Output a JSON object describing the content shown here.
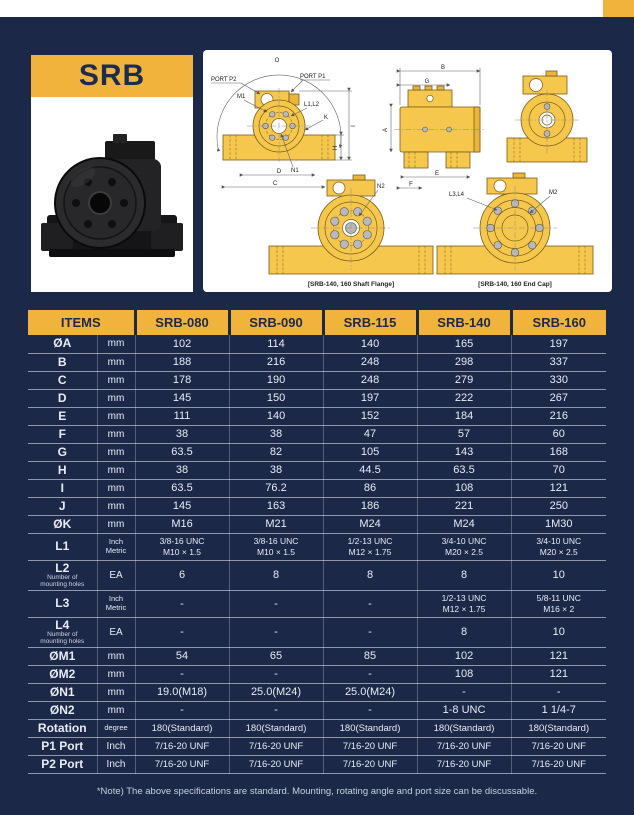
{
  "colors": {
    "background_navy": "#1b2847",
    "accent_yellow": "#f0b43c",
    "drawing_gold": "#f5c84d",
    "header_text_navy": "#1c2a4c",
    "unit_text_yellow": "#ecb648"
  },
  "product_card": {
    "title": "SRB"
  },
  "drawing": {
    "front_view": {
      "labels": {
        "o": "O",
        "port_p2": "PORT P2",
        "port_p1": "PORT P1",
        "m1": "M1",
        "l1l2": "L1,L2",
        "k": "K",
        "n1": "N1",
        "h": "H",
        "i": "I",
        "d": "D",
        "c": "C"
      }
    },
    "side_view": {
      "labels": {
        "b": "B",
        "g": "G",
        "a": "A",
        "e": "E",
        "f": "F"
      }
    },
    "shaft_flange_view": {
      "label_n2": "N2",
      "caption": "[SRB-140, 160 Shaft Flange]"
    },
    "end_cap_view": {
      "label_l3l4": "L3,L4",
      "label_m2": "M2",
      "caption": "[SRB-140, 160 End Cap]"
    }
  },
  "table": {
    "items_header": "ITEMS",
    "models": [
      "SRB-080",
      "SRB-090",
      "SRB-115",
      "SRB-140",
      "SRB-160"
    ],
    "rows": [
      {
        "item": "ØA",
        "unit": "mm",
        "values": [
          "102",
          "114",
          "140",
          "165",
          "197"
        ]
      },
      {
        "item": "B",
        "unit": "mm",
        "values": [
          "188",
          "216",
          "248",
          "298",
          "337"
        ]
      },
      {
        "item": "C",
        "unit": "mm",
        "values": [
          "178",
          "190",
          "248",
          "279",
          "330"
        ]
      },
      {
        "item": "D",
        "unit": "mm",
        "values": [
          "145",
          "150",
          "197",
          "222",
          "267"
        ]
      },
      {
        "item": "E",
        "unit": "mm",
        "values": [
          "111",
          "140",
          "152",
          "184",
          "216"
        ]
      },
      {
        "item": "F",
        "unit": "mm",
        "values": [
          "38",
          "38",
          "47",
          "57",
          "60"
        ]
      },
      {
        "item": "G",
        "unit": "mm",
        "values": [
          "63.5",
          "82",
          "105",
          "143",
          "168"
        ]
      },
      {
        "item": "H",
        "unit": "mm",
        "values": [
          "38",
          "38",
          "44.5",
          "63.5",
          "70"
        ]
      },
      {
        "item": "I",
        "unit": "mm",
        "values": [
          "63.5",
          "76.2",
          "86",
          "108",
          "121"
        ]
      },
      {
        "item": "J",
        "unit": "mm",
        "values": [
          "145",
          "163",
          "186",
          "221",
          "250"
        ]
      },
      {
        "item": "ØK",
        "unit": "mm",
        "values": [
          "M16",
          "M21",
          "M24",
          "M24",
          "1M30"
        ]
      },
      {
        "item": "L1",
        "unit": "Inch\nMetric",
        "values": [
          "3/8-16 UNC\nM10 × 1.5",
          "3/8-16 UNC\nM10 × 1.5",
          "1/2-13 UNC\nM12 × 1.75",
          "3/4-10 UNC\nM20 × 2.5",
          "3/4-10 UNC\nM20 × 2.5"
        ]
      },
      {
        "item": "L2",
        "sub": "Number of\nmounting holes",
        "unit": "EA",
        "values": [
          "6",
          "8",
          "8",
          "8",
          "10"
        ]
      },
      {
        "item": "L3",
        "unit": "Inch\nMetric",
        "values": [
          "-",
          "-",
          "-",
          "1/2-13 UNC\nM12 × 1.75",
          "5/8-11 UNC\nM16 × 2"
        ]
      },
      {
        "item": "L4",
        "sub": "Number of\nmounting holes",
        "unit": "EA",
        "values": [
          "-",
          "-",
          "-",
          "8",
          "10"
        ]
      },
      {
        "item": "ØM1",
        "unit": "mm",
        "values": [
          "54",
          "65",
          "85",
          "102",
          "121"
        ]
      },
      {
        "item": "ØM2",
        "unit": "mm",
        "values": [
          "-",
          "-",
          "-",
          "108",
          "121"
        ]
      },
      {
        "item": "ØN1",
        "unit": "mm",
        "values": [
          "19.0(M18)",
          "25.0(M24)",
          "25.0(M24)",
          "-",
          "-"
        ]
      },
      {
        "item": "ØN2",
        "unit": "mm",
        "values": [
          "-",
          "-",
          "-",
          "1-8 UNC",
          "1 1/4-7"
        ]
      },
      {
        "item": "Rotation",
        "unit": "degree",
        "values": [
          "180(Standard)",
          "180(Standard)",
          "180(Standard)",
          "180(Standard)",
          "180(Standard)"
        ]
      },
      {
        "item": "P1 Port",
        "unit": "Inch",
        "values": [
          "7/16-20 UNF",
          "7/16-20 UNF",
          "7/16-20 UNF",
          "7/16-20 UNF",
          "7/16-20 UNF"
        ]
      },
      {
        "item": "P2 Port",
        "unit": "Inch",
        "values": [
          "7/16-20 UNF",
          "7/16-20 UNF",
          "7/16-20 UNF",
          "7/16-20 UNF",
          "7/16-20 UNF"
        ]
      }
    ]
  },
  "note": "*Note) The above specifications are standard. Mounting, rotating angle and port size can be discussable."
}
